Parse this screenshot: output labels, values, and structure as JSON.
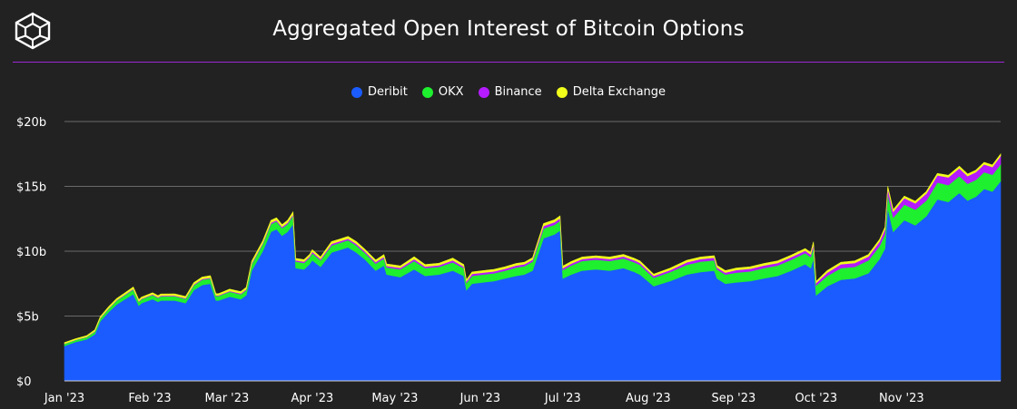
{
  "header": {
    "title": "Aggregated Open Interest of Bitcoin Options"
  },
  "chart_data": {
    "type": "area",
    "stacked": true,
    "title": "Aggregated Open Interest of Bitcoin Options",
    "xlabel": "",
    "ylabel": "",
    "legend_position": "top-center",
    "grid": true,
    "y_ticks": [
      "$0",
      "$5b",
      "$10b",
      "$15b",
      "$20b"
    ],
    "y_tick_values": [
      0,
      5,
      10,
      15,
      20
    ],
    "ylim": [
      0,
      20
    ],
    "x_ticks": [
      "Jan '23",
      "Feb '23",
      "Mar '23",
      "Apr '23",
      "May '23",
      "Jun '23",
      "Jul '23",
      "Aug '23",
      "Sep '23",
      "Oct '23",
      "Nov '23"
    ],
    "x_tick_dates": [
      "2023-01-01",
      "2023-02-01",
      "2023-03-01",
      "2023-04-01",
      "2023-05-01",
      "2023-06-01",
      "2023-07-01",
      "2023-08-01",
      "2023-09-01",
      "2023-10-01",
      "2023-11-01"
    ],
    "x_range": [
      "2023-01-01",
      "2023-12-07"
    ],
    "x": [
      "2023-01-01",
      "2023-01-05",
      "2023-01-09",
      "2023-01-12",
      "2023-01-14",
      "2023-01-17",
      "2023-01-20",
      "2023-01-23",
      "2023-01-26",
      "2023-01-28",
      "2023-01-29",
      "2023-02-02",
      "2023-02-04",
      "2023-02-05",
      "2023-02-10",
      "2023-02-14",
      "2023-02-17",
      "2023-02-20",
      "2023-02-23",
      "2023-02-25",
      "2023-02-26",
      "2023-03-02",
      "2023-03-06",
      "2023-03-08",
      "2023-03-10",
      "2023-03-14",
      "2023-03-17",
      "2023-03-19",
      "2023-03-21",
      "2023-03-23",
      "2023-03-25",
      "2023-03-26",
      "2023-03-29",
      "2023-03-31",
      "2023-04-01",
      "2023-04-04",
      "2023-04-08",
      "2023-04-11",
      "2023-04-14",
      "2023-04-17",
      "2023-04-20",
      "2023-04-24",
      "2023-04-27",
      "2023-04-28",
      "2023-05-03",
      "2023-05-08",
      "2023-05-12",
      "2023-05-17",
      "2023-05-22",
      "2023-05-26",
      "2023-05-27",
      "2023-05-29",
      "2023-06-02",
      "2023-06-06",
      "2023-06-10",
      "2023-06-14",
      "2023-06-17",
      "2023-06-20",
      "2023-06-24",
      "2023-06-28",
      "2023-06-30",
      "2023-07-01",
      "2023-07-04",
      "2023-07-08",
      "2023-07-13",
      "2023-07-18",
      "2023-07-23",
      "2023-07-27",
      "2023-07-28",
      "2023-07-29",
      "2023-08-03",
      "2023-08-09",
      "2023-08-15",
      "2023-08-20",
      "2023-08-25",
      "2023-08-26",
      "2023-08-29",
      "2023-09-02",
      "2023-09-07",
      "2023-09-12",
      "2023-09-17",
      "2023-09-22",
      "2023-09-27",
      "2023-09-29",
      "2023-09-30",
      "2023-10-01",
      "2023-10-05",
      "2023-10-10",
      "2023-10-15",
      "2023-10-20",
      "2023-10-24",
      "2023-10-26",
      "2023-10-27",
      "2023-10-29",
      "2023-11-02",
      "2023-11-06",
      "2023-11-10",
      "2023-11-14",
      "2023-11-18",
      "2023-11-22",
      "2023-11-25",
      "2023-11-28",
      "2023-12-01",
      "2023-12-04",
      "2023-12-07"
    ],
    "series": [
      {
        "name": "Deribit",
        "color": "#1a5cff",
        "values": [
          2.7,
          3.0,
          3.2,
          3.6,
          4.6,
          5.3,
          5.9,
          6.3,
          6.7,
          5.8,
          6.0,
          6.3,
          6.1,
          6.2,
          6.2,
          6.0,
          7.0,
          7.4,
          7.5,
          6.2,
          6.2,
          6.5,
          6.3,
          6.6,
          8.5,
          10.0,
          11.5,
          11.7,
          11.2,
          11.5,
          12.1,
          8.7,
          8.6,
          9.0,
          9.3,
          8.8,
          9.9,
          10.1,
          10.3,
          9.9,
          9.4,
          8.5,
          8.9,
          8.2,
          8.0,
          8.6,
          8.1,
          8.2,
          8.5,
          8.1,
          7.0,
          7.5,
          7.6,
          7.7,
          7.9,
          8.1,
          8.2,
          8.5,
          11.0,
          11.3,
          11.6,
          7.9,
          8.2,
          8.5,
          8.6,
          8.5,
          8.7,
          8.4,
          8.3,
          8.2,
          7.3,
          7.7,
          8.2,
          8.4,
          8.5,
          7.9,
          7.5,
          7.6,
          7.7,
          7.9,
          8.1,
          8.5,
          9.0,
          8.7,
          9.4,
          6.6,
          7.3,
          7.8,
          7.9,
          8.3,
          9.4,
          10.2,
          13.3,
          11.5,
          12.4,
          12.0,
          12.7,
          14.0,
          13.8,
          14.5,
          13.9,
          14.2,
          14.8,
          14.6,
          15.4
        ]
      },
      {
        "name": "OKX",
        "color": "#1eef2e",
        "values": [
          0.15,
          0.15,
          0.17,
          0.2,
          0.22,
          0.25,
          0.3,
          0.32,
          0.35,
          0.3,
          0.3,
          0.32,
          0.3,
          0.32,
          0.33,
          0.33,
          0.38,
          0.4,
          0.4,
          0.35,
          0.35,
          0.38,
          0.38,
          0.4,
          0.5,
          0.55,
          0.6,
          0.6,
          0.58,
          0.6,
          0.65,
          0.5,
          0.5,
          0.5,
          0.55,
          0.5,
          0.55,
          0.55,
          0.55,
          0.55,
          0.5,
          0.55,
          0.55,
          0.55,
          0.6,
          0.65,
          0.6,
          0.6,
          0.65,
          0.6,
          0.55,
          0.6,
          0.6,
          0.6,
          0.6,
          0.65,
          0.65,
          0.7,
          0.75,
          0.75,
          0.75,
          0.65,
          0.7,
          0.75,
          0.75,
          0.75,
          0.75,
          0.75,
          0.75,
          0.75,
          0.65,
          0.7,
          0.75,
          0.8,
          0.8,
          0.7,
          0.7,
          0.75,
          0.75,
          0.8,
          0.8,
          0.85,
          0.85,
          0.85,
          0.9,
          0.75,
          0.8,
          0.9,
          0.9,
          1.0,
          1.0,
          1.1,
          1.1,
          1.1,
          1.2,
          1.2,
          1.2,
          1.3,
          1.3,
          1.3,
          1.3,
          1.3,
          1.3,
          1.3,
          1.3
        ]
      },
      {
        "name": "Binance",
        "color": "#b51bff",
        "values": [
          0.02,
          0.02,
          0.02,
          0.03,
          0.03,
          0.04,
          0.04,
          0.05,
          0.05,
          0.04,
          0.04,
          0.05,
          0.05,
          0.05,
          0.05,
          0.05,
          0.06,
          0.06,
          0.06,
          0.05,
          0.05,
          0.06,
          0.06,
          0.06,
          0.08,
          0.08,
          0.1,
          0.1,
          0.1,
          0.1,
          0.1,
          0.1,
          0.1,
          0.1,
          0.12,
          0.1,
          0.12,
          0.12,
          0.12,
          0.12,
          0.12,
          0.12,
          0.12,
          0.12,
          0.12,
          0.15,
          0.12,
          0.12,
          0.15,
          0.12,
          0.12,
          0.15,
          0.15,
          0.15,
          0.15,
          0.15,
          0.15,
          0.15,
          0.2,
          0.2,
          0.2,
          0.15,
          0.15,
          0.15,
          0.15,
          0.15,
          0.15,
          0.15,
          0.15,
          0.15,
          0.15,
          0.15,
          0.2,
          0.2,
          0.2,
          0.15,
          0.15,
          0.2,
          0.2,
          0.2,
          0.2,
          0.2,
          0.2,
          0.2,
          0.25,
          0.2,
          0.25,
          0.3,
          0.3,
          0.3,
          0.35,
          0.4,
          0.45,
          0.45,
          0.5,
          0.5,
          0.55,
          0.55,
          0.6,
          0.6,
          0.6,
          0.6,
          0.6,
          0.6,
          0.65
        ]
      },
      {
        "name": "Delta Exchange",
        "color": "#f1ff1a",
        "values": [
          0.08,
          0.08,
          0.09,
          0.1,
          0.1,
          0.12,
          0.12,
          0.12,
          0.14,
          0.12,
          0.12,
          0.13,
          0.12,
          0.13,
          0.13,
          0.13,
          0.14,
          0.15,
          0.15,
          0.13,
          0.13,
          0.14,
          0.14,
          0.15,
          0.15,
          0.17,
          0.18,
          0.18,
          0.17,
          0.18,
          0.18,
          0.15,
          0.15,
          0.15,
          0.15,
          0.15,
          0.17,
          0.17,
          0.17,
          0.17,
          0.15,
          0.15,
          0.17,
          0.15,
          0.15,
          0.17,
          0.15,
          0.15,
          0.17,
          0.15,
          0.13,
          0.15,
          0.15,
          0.15,
          0.15,
          0.15,
          0.15,
          0.15,
          0.18,
          0.18,
          0.18,
          0.15,
          0.15,
          0.15,
          0.15,
          0.15,
          0.15,
          0.15,
          0.15,
          0.15,
          0.13,
          0.15,
          0.15,
          0.15,
          0.15,
          0.15,
          0.15,
          0.15,
          0.15,
          0.15,
          0.15,
          0.15,
          0.15,
          0.15,
          0.17,
          0.13,
          0.15,
          0.15,
          0.15,
          0.15,
          0.15,
          0.15,
          0.15,
          0.15,
          0.15,
          0.15,
          0.15,
          0.15,
          0.15,
          0.15,
          0.15,
          0.15,
          0.15,
          0.15,
          0.15
        ]
      }
    ]
  }
}
